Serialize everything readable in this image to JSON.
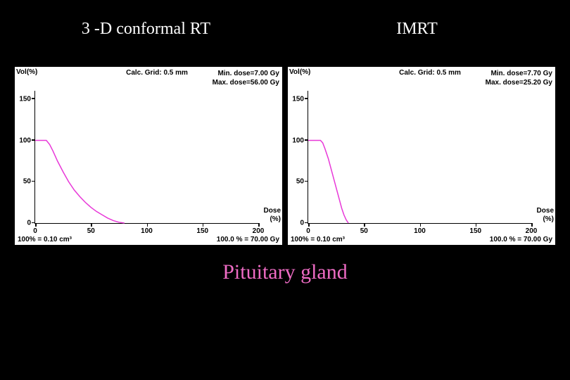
{
  "titles": {
    "left": "3 -D conformal RT",
    "right": "IMRT"
  },
  "caption": {
    "text": "Pituitary gland",
    "color": "#ee6bc4"
  },
  "panels": [
    {
      "header": {
        "vol_label": "Vol(%)",
        "calc_grid": "Calc. Grid: 0.5 mm",
        "min_dose": "Min. dose=7.00 Gy",
        "max_dose": "Max. dose=56.00 Gy"
      },
      "footer": {
        "left": "100% = 0.10 cm³",
        "right": "100.0 % = 70.00 Gy"
      },
      "axis": {
        "x": {
          "label": "Dose\n(%)",
          "min": 0,
          "max": 200,
          "ticks": [
            0,
            50,
            100,
            150,
            200
          ]
        },
        "y": {
          "label": "Vol(%)",
          "min": 0,
          "max": 160,
          "ticks": [
            0,
            50,
            100,
            150
          ]
        }
      },
      "curve": {
        "color": "#e838d8",
        "width": 1.5,
        "points": [
          [
            0,
            100
          ],
          [
            10,
            100
          ],
          [
            13,
            95
          ],
          [
            16,
            87
          ],
          [
            20,
            75
          ],
          [
            25,
            62
          ],
          [
            30,
            50
          ],
          [
            35,
            40
          ],
          [
            40,
            32
          ],
          [
            45,
            25
          ],
          [
            50,
            19
          ],
          [
            55,
            14
          ],
          [
            60,
            10
          ],
          [
            65,
            6
          ],
          [
            70,
            3
          ],
          [
            75,
            1
          ],
          [
            80,
            0
          ]
        ]
      }
    },
    {
      "header": {
        "vol_label": "Vol(%)",
        "calc_grid": "Calc. Grid: 0.5 mm",
        "min_dose": "Min. dose=7.70 Gy",
        "max_dose": "Max. dose=25.20 Gy"
      },
      "footer": {
        "left": "100% = 0.10 cm³",
        "right": "100.0 % = 70.00 Gy"
      },
      "axis": {
        "x": {
          "label": "Dose\n(%)",
          "min": 0,
          "max": 200,
          "ticks": [
            0,
            50,
            100,
            150,
            200
          ]
        },
        "y": {
          "label": "Vol(%)",
          "min": 0,
          "max": 160,
          "ticks": [
            0,
            50,
            100,
            150
          ]
        }
      },
      "curve": {
        "color": "#e838d8",
        "width": 1.5,
        "points": [
          [
            0,
            100
          ],
          [
            11,
            100
          ],
          [
            13,
            97
          ],
          [
            15,
            90
          ],
          [
            18,
            78
          ],
          [
            20,
            68
          ],
          [
            22,
            58
          ],
          [
            24,
            48
          ],
          [
            26,
            38
          ],
          [
            28,
            28
          ],
          [
            30,
            18
          ],
          [
            32,
            10
          ],
          [
            34,
            4
          ],
          [
            36,
            0
          ]
        ]
      }
    }
  ]
}
